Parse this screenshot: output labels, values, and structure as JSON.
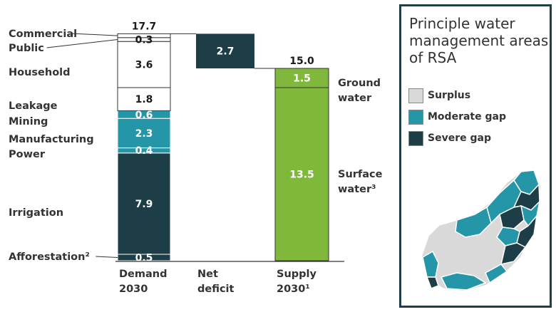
{
  "chart_data": {
    "type": "bar",
    "subtype": "waterfall-stacked",
    "title": "",
    "categories": [
      "Demand 2030",
      "Net deficit",
      "Supply 2030¹"
    ],
    "x_tick_labels": [
      [
        "Demand",
        "2030"
      ],
      [
        "Net",
        "deficit"
      ],
      [
        "Supply",
        "2030¹"
      ]
    ],
    "demand": {
      "total_label": "17.7",
      "segments": [
        {
          "name": "Afforestation²",
          "value": 0.5,
          "display": "0.5",
          "color": "#1d3d47",
          "text_color": "#ffffff"
        },
        {
          "name": "Irrigation",
          "value": 7.9,
          "display": "7.9",
          "color": "#1d3d47",
          "text_color": "#ffffff"
        },
        {
          "name": "Power",
          "value": 0.4,
          "display": "0.4",
          "color": "#2596a8",
          "text_color": "#ffffff"
        },
        {
          "name": "Manufacturing",
          "value": 2.3,
          "display": "2.3",
          "color": "#2596a8",
          "text_color": "#ffffff"
        },
        {
          "name": "Mining",
          "value": 0.6,
          "display": "0.6",
          "color": "#2596a8",
          "text_color": "#ffffff"
        },
        {
          "name": "Leakage",
          "value": 1.8,
          "display": "1.8",
          "color": "#ffffff",
          "text_color": "#1a1a1a"
        },
        {
          "name": "Household",
          "value": 3.6,
          "display": "3.6",
          "color": "#ffffff",
          "text_color": "#1a1a1a"
        },
        {
          "name": "Public",
          "value": 0.3,
          "display": "0.3",
          "color": "#ffffff",
          "text_color": "#1a1a1a"
        },
        {
          "name": "Commercial",
          "value": 0.3,
          "display": "",
          "color": "#ffffff",
          "text_color": "#1a1a1a"
        }
      ]
    },
    "net_deficit": {
      "value": 2.7,
      "display": "2.7",
      "from": 15.0,
      "to": 17.7,
      "color": "#1d3d47",
      "text_color": "#ffffff"
    },
    "supply": {
      "total_label": "15.0",
      "segments": [
        {
          "name": "Surface water³",
          "value": 13.5,
          "display": "13.5",
          "color": "#7fb83a",
          "text_color": "#ffffff"
        },
        {
          "name": "Ground water",
          "value": 1.5,
          "display": "1.5",
          "color": "#7fb83a",
          "text_color": "#ffffff"
        }
      ]
    },
    "ylim": [
      0,
      17.7
    ],
    "grid": false,
    "legend": "none"
  },
  "map_panel": {
    "title": "Principle water management areas of RSA",
    "legend": [
      {
        "label": "Surplus",
        "color": "#d9d9d9"
      },
      {
        "label": "Moderate gap",
        "color": "#2596a8"
      },
      {
        "label": "Severe gap",
        "color": "#1d3d47"
      }
    ]
  }
}
